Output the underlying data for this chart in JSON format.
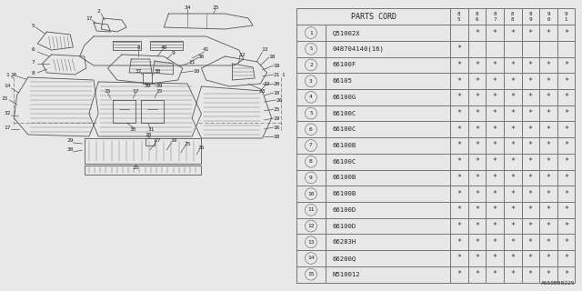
{
  "table_header": "PARTS CORD",
  "columns": [
    "85",
    "86",
    "87",
    "88",
    "89",
    "90",
    "91"
  ],
  "rows": [
    {
      "num": "1",
      "circled": true,
      "part": "Q51002X",
      "marks": [
        " ",
        "*",
        "*",
        "*",
        "*",
        "*",
        "*"
      ],
      "s_prefix": false
    },
    {
      "num": "",
      "circled": false,
      "part": "048704140(16)",
      "marks": [
        "*",
        " ",
        " ",
        " ",
        " ",
        " ",
        " "
      ],
      "s_prefix": true
    },
    {
      "num": "2",
      "circled": true,
      "part": "66100F",
      "marks": [
        "*",
        "*",
        "*",
        "*",
        "*",
        "*",
        "*"
      ],
      "s_prefix": false
    },
    {
      "num": "3",
      "circled": true,
      "part": "66105",
      "marks": [
        "*",
        "*",
        "*",
        "*",
        "*",
        "*",
        "*"
      ],
      "s_prefix": false
    },
    {
      "num": "4",
      "circled": true,
      "part": "66100G",
      "marks": [
        "*",
        "*",
        "*",
        "*",
        "*",
        "*",
        "*"
      ],
      "s_prefix": false
    },
    {
      "num": "5",
      "circled": true,
      "part": "66100C",
      "marks": [
        "*",
        "*",
        "*",
        "*",
        "*",
        "*",
        "*"
      ],
      "s_prefix": false
    },
    {
      "num": "6",
      "circled": true,
      "part": "66100C",
      "marks": [
        "*",
        "*",
        "*",
        "*",
        "*",
        "*",
        "*"
      ],
      "s_prefix": false
    },
    {
      "num": "7",
      "circled": true,
      "part": "66100B",
      "marks": [
        "*",
        "*",
        "*",
        "*",
        "*",
        "*",
        "*"
      ],
      "s_prefix": false
    },
    {
      "num": "8",
      "circled": true,
      "part": "66100C",
      "marks": [
        "*",
        "*",
        "*",
        "*",
        "*",
        "*",
        "*"
      ],
      "s_prefix": false
    },
    {
      "num": "9",
      "circled": true,
      "part": "66100B",
      "marks": [
        "*",
        "*",
        "*",
        "*",
        "*",
        "*",
        "*"
      ],
      "s_prefix": false
    },
    {
      "num": "10",
      "circled": true,
      "part": "66100B",
      "marks": [
        "*",
        "*",
        "*",
        "*",
        "*",
        "*",
        "*"
      ],
      "s_prefix": false
    },
    {
      "num": "11",
      "circled": true,
      "part": "66100D",
      "marks": [
        "*",
        "*",
        "*",
        "*",
        "*",
        "*",
        "*"
      ],
      "s_prefix": false
    },
    {
      "num": "12",
      "circled": true,
      "part": "66100D",
      "marks": [
        "*",
        "*",
        "*",
        "*",
        "*",
        "*",
        "*"
      ],
      "s_prefix": false
    },
    {
      "num": "13",
      "circled": true,
      "part": "66283H",
      "marks": [
        "*",
        "*",
        "*",
        "*",
        "*",
        "*",
        "*"
      ],
      "s_prefix": false
    },
    {
      "num": "14",
      "circled": true,
      "part": "66200Q",
      "marks": [
        "*",
        "*",
        "*",
        "*",
        "*",
        "*",
        "*"
      ],
      "s_prefix": false
    },
    {
      "num": "15",
      "circled": true,
      "part": "N510012",
      "marks": [
        "*",
        "*",
        "*",
        "*",
        "*",
        "*",
        "*"
      ],
      "s_prefix": false
    }
  ],
  "bg_color": "#e8e8e8",
  "table_bg": "#f0f0f0",
  "line_color": "#666666",
  "text_color": "#222222",
  "asterisk_color": "#444444",
  "footer": "A660B00225",
  "fig_width": 6.4,
  "fig_height": 3.2
}
